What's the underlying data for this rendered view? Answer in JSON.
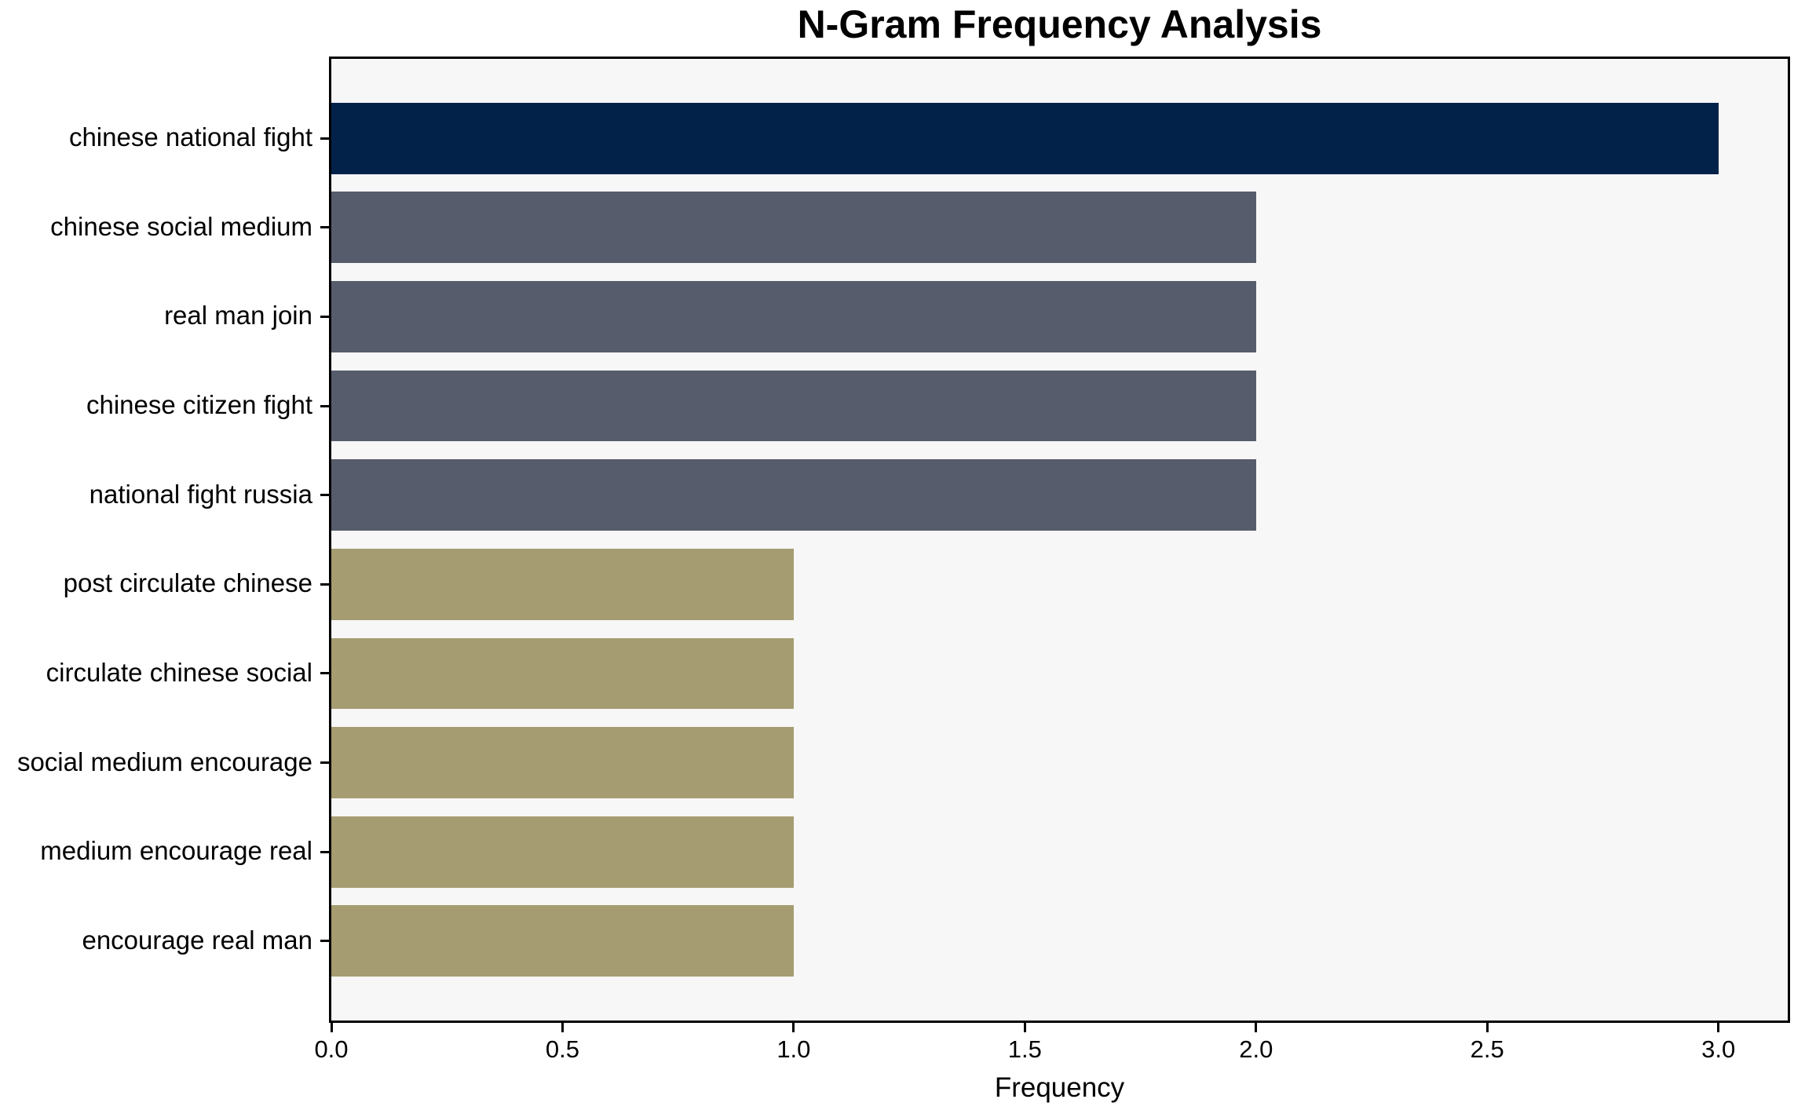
{
  "figure": {
    "title": "N-Gram Frequency Analysis",
    "xlabel": "Frequency"
  },
  "chart_data": {
    "type": "bar",
    "orientation": "horizontal",
    "title": "N-Gram Frequency Analysis",
    "xlabel": "Frequency",
    "ylabel": "",
    "categories": [
      "chinese national fight",
      "chinese social medium",
      "real man join",
      "chinese citizen fight",
      "national fight russia",
      "post circulate chinese",
      "circulate chinese social",
      "social medium encourage",
      "medium encourage real",
      "encourage real man"
    ],
    "values": [
      3,
      2,
      2,
      2,
      2,
      1,
      1,
      1,
      1,
      1
    ],
    "bar_colors": [
      "#02224a",
      "#565c6b",
      "#565c6b",
      "#565c6b",
      "#565c6b",
      "#a59c71",
      "#a59c71",
      "#a59c71",
      "#a59c71",
      "#a59c71"
    ],
    "xticks": [
      0,
      0.5,
      1,
      1.5,
      2,
      2.5,
      3
    ],
    "xtick_labels": [
      "0.0",
      "0.5",
      "1.0",
      "1.5",
      "2.0",
      "2.5",
      "3.0"
    ],
    "xlim": [
      0,
      3.15
    ],
    "bar_fraction": 0.8,
    "grid": false,
    "legend_position": "none",
    "plot_background": "#f7f7f7",
    "figure_background": "#ffffff",
    "axis_color": "#000000",
    "text_color": "#000000"
  }
}
